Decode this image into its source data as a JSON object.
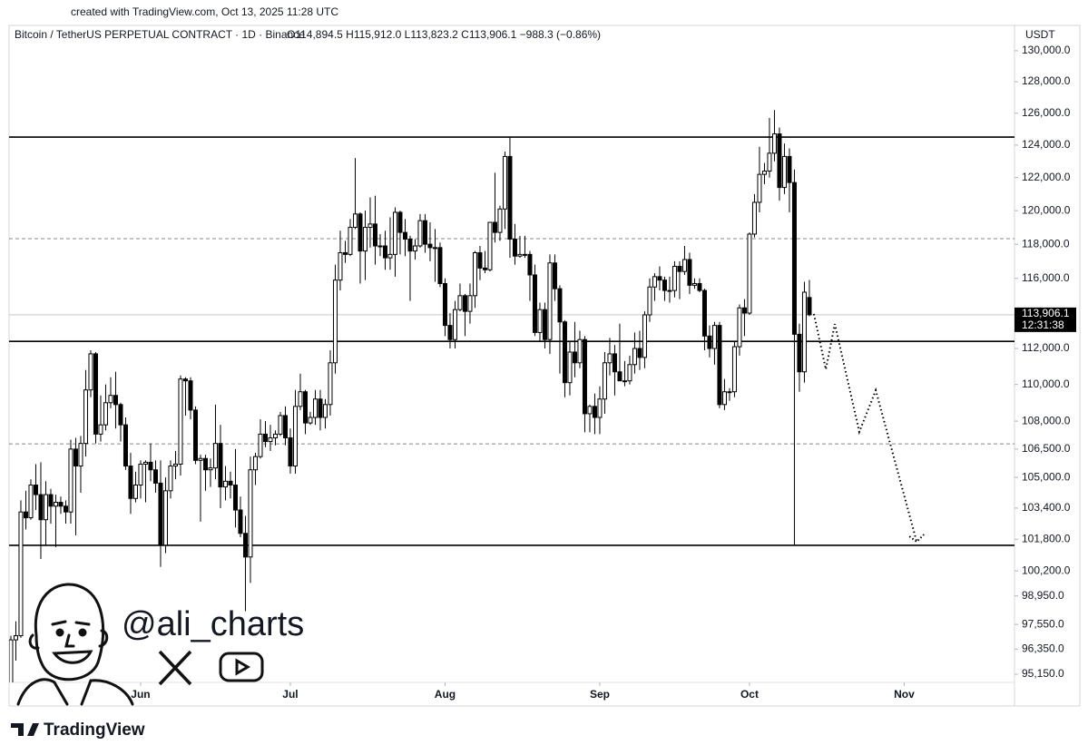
{
  "chart_data": {
    "type": "candlestick",
    "credit": "created with TradingView.com, Oct 13, 2025 11:28 UTC",
    "title": "Bitcoin / TetherUS PERPETUAL CONTRACT · 1D · Binance",
    "ohlc_label": "O114,894.5  H115,912.0  L113,823.2  C113,906.1  −988.3 (−0.86%)",
    "currency": "USDT",
    "watermark": "@ali_charts",
    "brand": "TradingView",
    "log_scale": true,
    "up_color": "#ffffff",
    "down_color": "#000000",
    "outline_color": "#000000",
    "xlim": [
      -0.36,
      201.1
    ],
    "ylim": [
      94760,
      130350
    ],
    "xticks": [
      {
        "value": 26,
        "label": "Jun"
      },
      {
        "value": 56,
        "label": "Jul"
      },
      {
        "value": 87,
        "label": "Aug"
      },
      {
        "value": 118,
        "label": "Sep"
      },
      {
        "value": 148,
        "label": "Oct"
      },
      {
        "value": 179,
        "label": "Nov"
      }
    ],
    "yticks": [
      {
        "value": 95150,
        "label": "95,150.0"
      },
      {
        "value": 96350,
        "label": "96,350.0"
      },
      {
        "value": 97550,
        "label": "97,550.0"
      },
      {
        "value": 98950,
        "label": "98,950.0"
      },
      {
        "value": 100200,
        "label": "100,200.0"
      },
      {
        "value": 101800,
        "label": "101,800.0"
      },
      {
        "value": 103400,
        "label": "103,400.0"
      },
      {
        "value": 105000,
        "label": "105,000.0"
      },
      {
        "value": 106500,
        "label": "106,500.0"
      },
      {
        "value": 108000,
        "label": "108,000.0"
      },
      {
        "value": 110000,
        "label": "110,000.0"
      },
      {
        "value": 112000,
        "label": "112,000.0"
      },
      {
        "value": 116000,
        "label": "116,000.0"
      },
      {
        "value": 118000,
        "label": "118,000.0"
      },
      {
        "value": 120000,
        "label": "120,000.0"
      },
      {
        "value": 122000,
        "label": "122,000.0"
      },
      {
        "value": 124000,
        "label": "124,000.0"
      },
      {
        "value": 126000,
        "label": "126,000.0"
      },
      {
        "value": 128000,
        "label": "128,000.0"
      },
      {
        "value": 130000,
        "label": "130,000.0"
      }
    ],
    "last_price": {
      "value": 113906.1,
      "label": "113,906.1"
    },
    "countdown": "12:31:38",
    "levels": [
      {
        "value": 124500,
        "style": "solid"
      },
      {
        "value": 112400,
        "style": "solid"
      },
      {
        "value": 101490,
        "style": "solid"
      },
      {
        "value": 118330,
        "style": "dashed"
      },
      {
        "value": 106780,
        "style": "dashed"
      }
    ],
    "projection": [
      [
        160.9,
        113950
      ],
      [
        163.3,
        110840
      ],
      [
        165.1,
        113380
      ],
      [
        170,
        107420
      ],
      [
        173.3,
        109680
      ],
      [
        181.5,
        101670
      ]
    ],
    "ohlc": [
      [
        94700,
        97000,
        94100,
        96800
      ],
      [
        96800,
        97700,
        95800,
        97000
      ],
      [
        97000,
        103800,
        96900,
        103200
      ],
      [
        103200,
        104300,
        102300,
        102900
      ],
      [
        102900,
        104900,
        102800,
        104600
      ],
      [
        104600,
        105700,
        103300,
        104100
      ],
      [
        104100,
        105800,
        100800,
        102800
      ],
      [
        102800,
        104800,
        101500,
        104100
      ],
      [
        104100,
        104400,
        102600,
        103500
      ],
      [
        103500,
        104100,
        101400,
        103700
      ],
      [
        103700,
        104000,
        103100,
        103500
      ],
      [
        103500,
        103800,
        102600,
        103200
      ],
      [
        103200,
        107000,
        102600,
        106500
      ],
      [
        106500,
        107100,
        102000,
        105600
      ],
      [
        105600,
        107200,
        104200,
        106800
      ],
      [
        106800,
        110800,
        106100,
        109700
      ],
      [
        109700,
        111900,
        109300,
        111700
      ],
      [
        111700,
        111800,
        106800,
        107300
      ],
      [
        107300,
        109400,
        106900,
        107800
      ],
      [
        107800,
        110000,
        107500,
        109000
      ],
      [
        109000,
        110400,
        108700,
        109400
      ],
      [
        109400,
        110700,
        107600,
        108900
      ],
      [
        108900,
        109000,
        106900,
        107800
      ],
      [
        107800,
        108200,
        105400,
        105600
      ],
      [
        105600,
        106300,
        103100,
        103900
      ],
      [
        103900,
        105300,
        103700,
        104600
      ],
      [
        104600,
        105900,
        103900,
        105700
      ],
      [
        105700,
        105900,
        103700,
        105800
      ],
      [
        105800,
        106800,
        104800,
        105400
      ],
      [
        105400,
        105900,
        104200,
        104700
      ],
      [
        104700,
        105900,
        100400,
        101500
      ],
      [
        101500,
        105000,
        101100,
        104300
      ],
      [
        104300,
        105900,
        103900,
        105600
      ],
      [
        105600,
        106400,
        104900,
        105700
      ],
      [
        105700,
        110500,
        105100,
        110300
      ],
      [
        110300,
        110400,
        108300,
        110200
      ],
      [
        110200,
        110400,
        108100,
        108600
      ],
      [
        108600,
        108800,
        105700,
        105900
      ],
      [
        105900,
        106200,
        102700,
        106000
      ],
      [
        106000,
        106200,
        104300,
        105400
      ],
      [
        105400,
        106000,
        104500,
        105500
      ],
      [
        105500,
        108900,
        104900,
        106800
      ],
      [
        106800,
        107800,
        103400,
        104500
      ],
      [
        104500,
        105600,
        103800,
        104800
      ],
      [
        104800,
        105300,
        103900,
        104600
      ],
      [
        104600,
        106500,
        102400,
        103300
      ],
      [
        103300,
        104000,
        101900,
        102100
      ],
      [
        102100,
        103000,
        98200,
        100900
      ],
      [
        100900,
        106100,
        99600,
        105400
      ],
      [
        105400,
        106300,
        104600,
        106100
      ],
      [
        106100,
        108100,
        106000,
        107300
      ],
      [
        107300,
        108000,
        106600,
        106900
      ],
      [
        106900,
        107800,
        106400,
        107100
      ],
      [
        107100,
        107500,
        106700,
        107300
      ],
      [
        107300,
        108500,
        107200,
        108300
      ],
      [
        108300,
        108800,
        106700,
        107100
      ],
      [
        107100,
        107600,
        105200,
        105600
      ],
      [
        105600,
        109700,
        105200,
        108800
      ],
      [
        108800,
        110600,
        108600,
        109600
      ],
      [
        109600,
        109700,
        107300,
        107900
      ],
      [
        107900,
        108500,
        107800,
        108200
      ],
      [
        108200,
        109700,
        107800,
        109200
      ],
      [
        109200,
        109700,
        107500,
        108200
      ],
      [
        108200,
        109200,
        107600,
        108900
      ],
      [
        108900,
        111900,
        108300,
        111200
      ],
      [
        111200,
        116800,
        110600,
        115900
      ],
      [
        115900,
        118800,
        115300,
        117500
      ],
      [
        117500,
        118200,
        116900,
        117400
      ],
      [
        117400,
        119500,
        117300,
        119000
      ],
      [
        119000,
        123200,
        118900,
        119800
      ],
      [
        119800,
        119900,
        115700,
        117600
      ],
      [
        117600,
        120000,
        115900,
        119000
      ],
      [
        119000,
        120800,
        117800,
        119200
      ],
      [
        119200,
        120900,
        116800,
        117900
      ],
      [
        117900,
        118600,
        117300,
        117900
      ],
      [
        117900,
        118800,
        116500,
        117200
      ],
      [
        117200,
        119600,
        116500,
        117400
      ],
      [
        117400,
        120200,
        116100,
        119900
      ],
      [
        119900,
        120000,
        117400,
        118700
      ],
      [
        118700,
        119500,
        117300,
        118300
      ],
      [
        118300,
        118500,
        114700,
        117600
      ],
      [
        117600,
        118300,
        117100,
        117900
      ],
      [
        117900,
        119800,
        117800,
        119400
      ],
      [
        119400,
        119800,
        117500,
        118000
      ],
      [
        118000,
        119300,
        117000,
        117800
      ],
      [
        117800,
        118900,
        115800,
        117800
      ],
      [
        117800,
        118100,
        115500,
        115700
      ],
      [
        115700,
        116000,
        112700,
        113300
      ],
      [
        113300,
        114000,
        112000,
        112500
      ],
      [
        112500,
        114700,
        112000,
        114200
      ],
      [
        114200,
        115700,
        114100,
        115000
      ],
      [
        115000,
        115100,
        112700,
        114100
      ],
      [
        114100,
        115700,
        113400,
        115000
      ],
      [
        115000,
        117600,
        114300,
        117500
      ],
      [
        117500,
        117900,
        115900,
        116600
      ],
      [
        116600,
        117600,
        116300,
        116500
      ],
      [
        116500,
        119300,
        116400,
        119300
      ],
      [
        119300,
        122300,
        118100,
        118700
      ],
      [
        118700,
        120300,
        118200,
        120100
      ],
      [
        120100,
        123600,
        118900,
        123300
      ],
      [
        123300,
        124500,
        117200,
        118300
      ],
      [
        118300,
        119200,
        116800,
        117300
      ],
      [
        117300,
        118500,
        117200,
        117400
      ],
      [
        117400,
        118500,
        117200,
        117400
      ],
      [
        117400,
        117600,
        114700,
        116200
      ],
      [
        116200,
        116800,
        112700,
        112900
      ],
      [
        112900,
        114600,
        112400,
        114200
      ],
      [
        114200,
        114600,
        112000,
        112500
      ],
      [
        112500,
        117400,
        111700,
        116900
      ],
      [
        116900,
        117400,
        114700,
        115400
      ],
      [
        115400,
        115600,
        110600,
        113500
      ],
      [
        113500,
        113600,
        109300,
        110100
      ],
      [
        110100,
        112400,
        109400,
        111800
      ],
      [
        111800,
        113500,
        110400,
        111200
      ],
      [
        111200,
        113000,
        110900,
        112500
      ],
      [
        112500,
        112700,
        107400,
        108400
      ],
      [
        108400,
        108900,
        107400,
        108800
      ],
      [
        108800,
        109500,
        107300,
        108200
      ],
      [
        108200,
        109900,
        107300,
        109200
      ],
      [
        109200,
        111800,
        108400,
        111200
      ],
      [
        111200,
        112600,
        110500,
        111700
      ],
      [
        111700,
        112200,
        109400,
        110700
      ],
      [
        110700,
        113400,
        110400,
        110200
      ],
      [
        110200,
        111300,
        109900,
        110200
      ],
      [
        110200,
        111600,
        110000,
        111100
      ],
      [
        111100,
        112900,
        110600,
        112000
      ],
      [
        112000,
        113000,
        110800,
        111500
      ],
      [
        111500,
        114100,
        110900,
        113900
      ],
      [
        113900,
        116000,
        113500,
        115500
      ],
      [
        115500,
        116300,
        114700,
        116100
      ],
      [
        116100,
        116700,
        115300,
        115900
      ],
      [
        115900,
        116100,
        114700,
        115300
      ],
      [
        115300,
        116100,
        114600,
        115300
      ],
      [
        115300,
        117000,
        114900,
        116700
      ],
      [
        116700,
        117000,
        114800,
        116400
      ],
      [
        116400,
        117900,
        116200,
        117100
      ],
      [
        117100,
        117500,
        115100,
        115600
      ],
      [
        115600,
        116000,
        115400,
        115700
      ],
      [
        115700,
        116000,
        115200,
        115300
      ],
      [
        115300,
        115400,
        111900,
        112700
      ],
      [
        112700,
        113300,
        111500,
        112000
      ],
      [
        112000,
        113500,
        111100,
        113300
      ],
      [
        113300,
        113500,
        108700,
        108900
      ],
      [
        108900,
        110300,
        108600,
        109600
      ],
      [
        109600,
        109800,
        109100,
        109600
      ],
      [
        109600,
        112400,
        109300,
        112100
      ],
      [
        112100,
        114500,
        111600,
        114300
      ],
      [
        114300,
        114800,
        112700,
        114000
      ],
      [
        114000,
        118700,
        113900,
        118600
      ],
      [
        118600,
        121000,
        118400,
        120500
      ],
      [
        120500,
        123900,
        119900,
        122200
      ],
      [
        122200,
        122900,
        121600,
        122400
      ],
      [
        122400,
        125700,
        122000,
        123500
      ],
      [
        123500,
        126200,
        123000,
        124700
      ],
      [
        124700,
        125100,
        120600,
        121400
      ],
      [
        121400,
        124100,
        121000,
        123300
      ],
      [
        123300,
        123800,
        119900,
        121700
      ],
      [
        121700,
        122500,
        101500,
        112800
      ],
      [
        112800,
        113400,
        109600,
        110700
      ],
      [
        110700,
        115800,
        110100,
        115200
      ],
      [
        114894.5,
        115912,
        113823.2,
        113906.1
      ]
    ]
  }
}
